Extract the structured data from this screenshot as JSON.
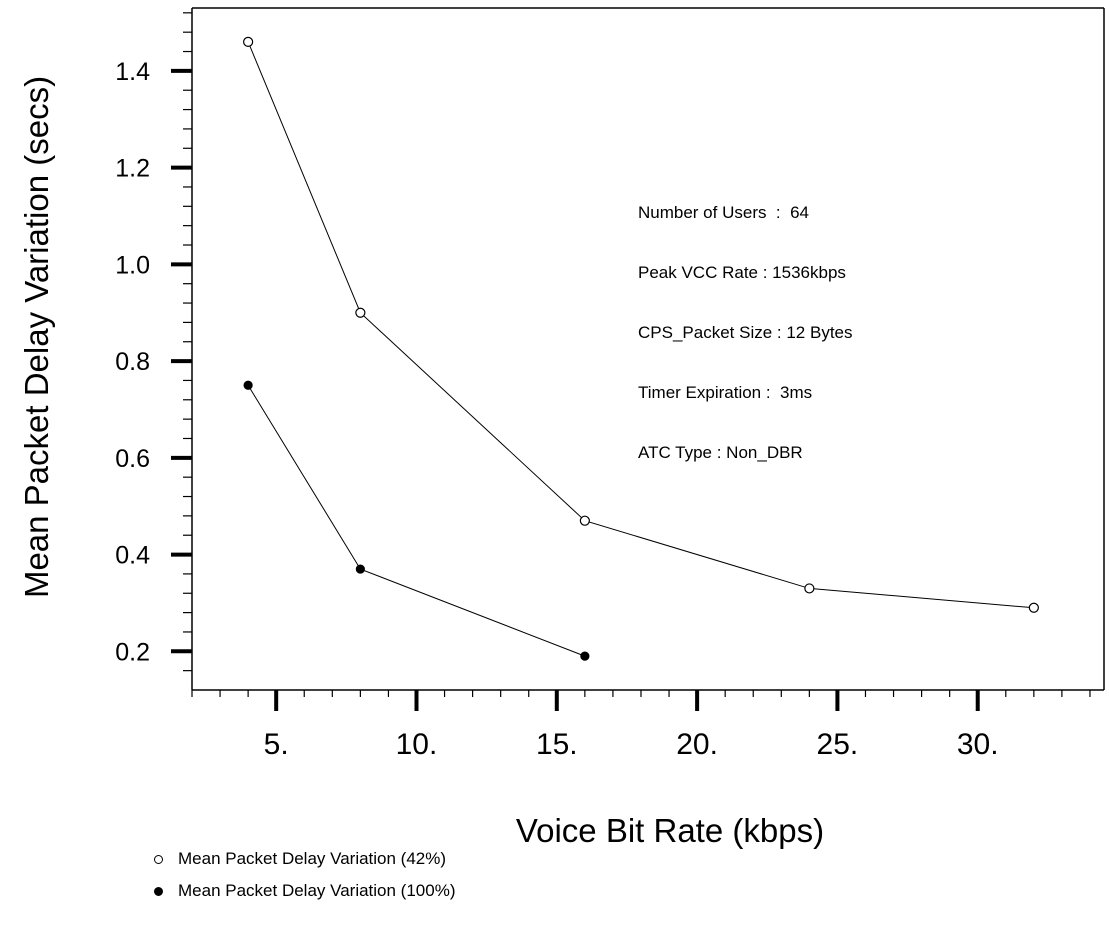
{
  "chart_data": {
    "type": "line",
    "xlabel": "Voice Bit Rate (kbps)",
    "ylabel": "Mean Packet Delay Variation (secs)",
    "xlim": [
      2.0,
      34.5
    ],
    "ylim": [
      0.12,
      1.53
    ],
    "x_ticks": [
      {
        "value": 5,
        "label": "5."
      },
      {
        "value": 10,
        "label": "10."
      },
      {
        "value": 15,
        "label": "15."
      },
      {
        "value": 20,
        "label": "20."
      },
      {
        "value": 25,
        "label": "25."
      },
      {
        "value": 30,
        "label": "30."
      }
    ],
    "y_ticks": [
      {
        "value": 0.2,
        "label": "0.2"
      },
      {
        "value": 0.4,
        "label": "0.4"
      },
      {
        "value": 0.6,
        "label": "0.6"
      },
      {
        "value": 0.8,
        "label": "0.8"
      },
      {
        "value": 1.0,
        "label": "1.0"
      },
      {
        "value": 1.2,
        "label": "1.2"
      },
      {
        "value": 1.4,
        "label": "1.4"
      }
    ],
    "x_minor_step": 1,
    "y_minor_step": 0.04,
    "grid": false,
    "series": [
      {
        "name": "Mean Packet Delay Variation (42%)",
        "marker": "open-circle",
        "x": [
          4,
          8,
          16,
          24,
          32
        ],
        "y": [
          1.46,
          0.9,
          0.47,
          0.33,
          0.29
        ]
      },
      {
        "name": "Mean Packet Delay Variation (100%)",
        "marker": "filled-circle",
        "x": [
          4,
          8,
          16
        ],
        "y": [
          0.75,
          0.37,
          0.19
        ]
      }
    ],
    "annotation": [
      "Number of Users  :  64",
      "Peak VCC Rate : 1536kbps",
      "CPS_Packet Size : 12 Bytes",
      "Timer Expiration :  3ms",
      "ATC Type : Non_DBR"
    ],
    "legend_position": "bottom-left"
  }
}
